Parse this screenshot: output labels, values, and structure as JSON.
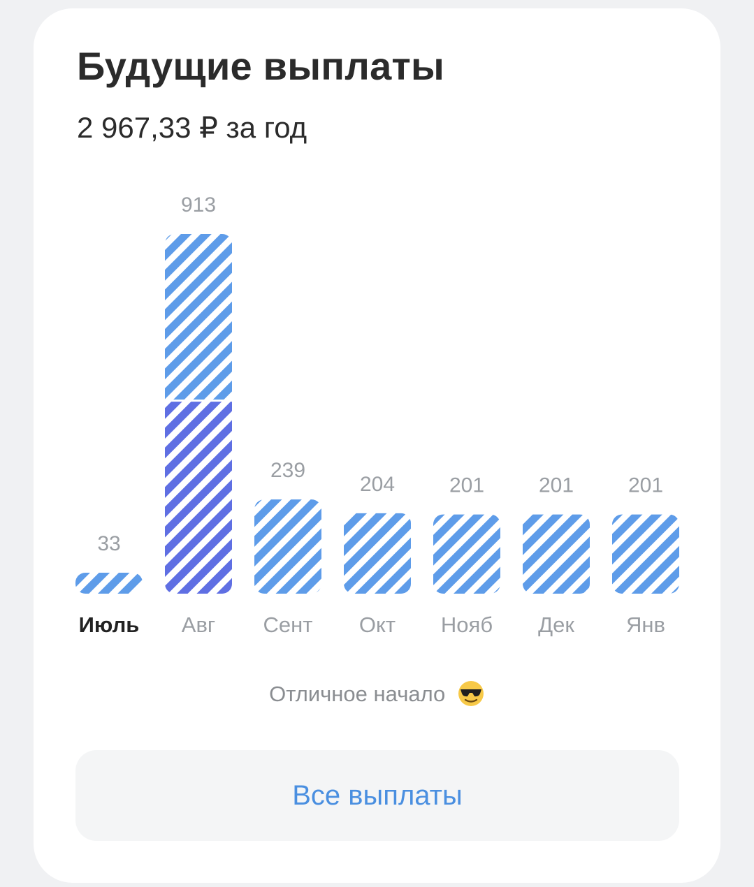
{
  "header": {
    "title": "Будущие выплаты",
    "subtitle": "2 967,33 ₽ за год"
  },
  "chart_data": {
    "type": "bar",
    "categories": [
      "Июль",
      "Авг",
      "Сент",
      "Окт",
      "Нояб",
      "Дек",
      "Янв"
    ],
    "values": [
      33,
      913,
      239,
      204,
      201,
      201,
      201
    ],
    "value_labels": [
      "33",
      "913",
      "239",
      "204",
      "201",
      "201",
      "201"
    ],
    "active_category": "Июль",
    "stacked_segments": [
      {
        "category": "Авг",
        "lower_value": 490,
        "upper_value": 423
      }
    ],
    "colors": {
      "stripe_primary": "#5e9ce9",
      "stripe_secondary": "#5f6fe3",
      "label_active": "#222222",
      "label_inactive": "#9a9ea3",
      "value_label": "#9a9ea3"
    },
    "ylim": [
      0,
      913
    ]
  },
  "footer": {
    "note": "Отличное начало",
    "note_icon": "sunglasses-emoji-icon",
    "button_label": "Все выплаты"
  }
}
